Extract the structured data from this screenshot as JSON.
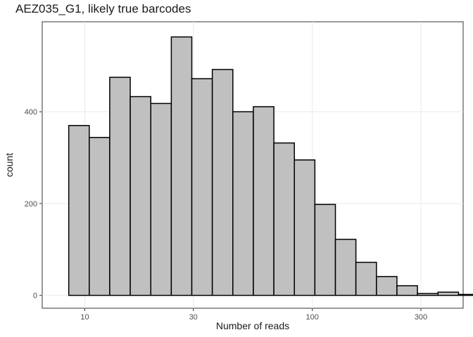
{
  "chart_data": {
    "type": "bar",
    "title": "AEZ035_G1, likely true barcodes",
    "xlabel": "Number of reads",
    "ylabel": "count",
    "x_scale": "log10",
    "x_range": [
      6.5,
      460
    ],
    "ylim": [
      -28,
      596
    ],
    "x_ticks": [
      10,
      30,
      100,
      300
    ],
    "x_tick_labels": [
      "10",
      "30",
      "100",
      "300"
    ],
    "y_ticks": [
      0,
      200,
      400
    ],
    "y_tick_labels": [
      "0",
      "200",
      "400"
    ],
    "grid": true,
    "bin_edges": [
      8.5,
      10.46,
      12.87,
      15.84,
      19.5,
      24.0,
      29.53,
      36.34,
      44.73,
      55.05,
      67.75,
      83.38,
      102.6,
      126.3,
      155.4,
      191.3,
      235.4,
      289.7,
      356.6,
      438.9
    ],
    "values": [
      370,
      344,
      475,
      433,
      418,
      563,
      472,
      492,
      400,
      411,
      332,
      295,
      198,
      122,
      72,
      41,
      21,
      4,
      7,
      2
    ],
    "fill_color": "#c0c0c0",
    "edge_color": "#000000"
  }
}
